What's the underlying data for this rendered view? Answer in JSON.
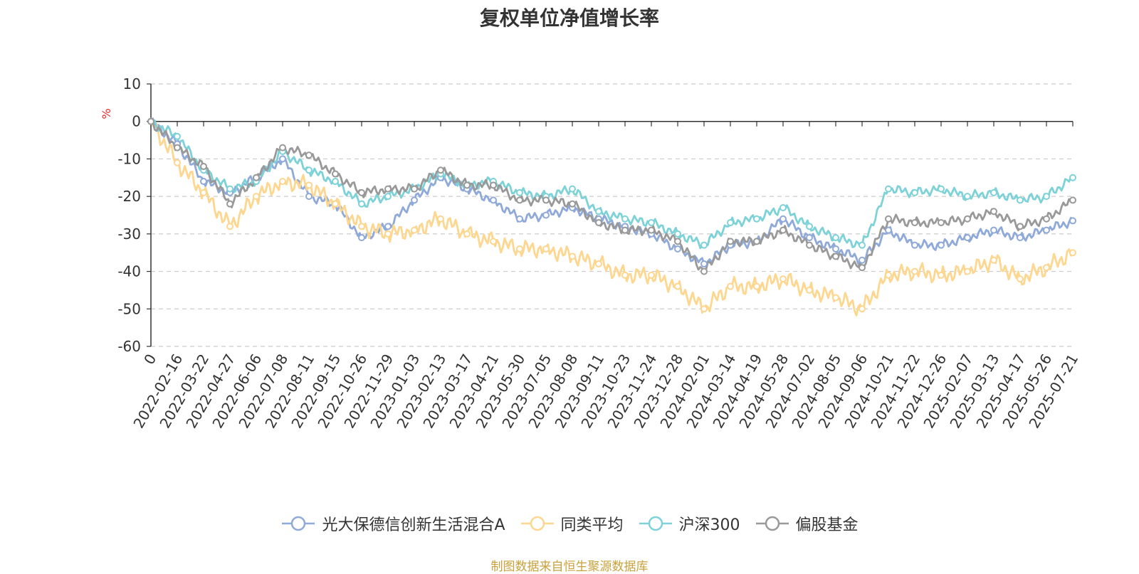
{
  "footer": "制图数据来自恒生聚源数据库",
  "chart_data": {
    "type": "line",
    "title": "复权单位净值增长率",
    "ylabel": "%",
    "ylim": [
      -60,
      10
    ],
    "yticks": [
      10,
      0,
      -10,
      -20,
      -30,
      -40,
      -50,
      -60
    ],
    "grid": true,
    "legend_position": "bottom",
    "x": [
      "0",
      "2022-02-16",
      "2022-03-22",
      "2022-04-27",
      "2022-06-06",
      "2022-07-08",
      "2022-08-11",
      "2022-09-15",
      "2022-10-26",
      "2022-11-29",
      "2023-01-03",
      "2023-02-13",
      "2023-03-17",
      "2023-04-21",
      "2023-05-30",
      "2023-07-05",
      "2023-08-08",
      "2023-09-11",
      "2023-10-23",
      "2023-11-24",
      "2023-12-28",
      "2024-02-01",
      "2024-03-14",
      "2024-04-19",
      "2024-05-28",
      "2024-07-02",
      "2024-08-05",
      "2024-09-06",
      "2024-10-21",
      "2024-11-22",
      "2024-12-26",
      "2025-02-07",
      "2025-03-13",
      "2025-04-17",
      "2025-05-26",
      "2025-07-21"
    ],
    "series": [
      {
        "name": "光大保德信创新生活混合A",
        "color": "#8fa9d8",
        "values": [
          0,
          -6,
          -16,
          -19,
          -15,
          -10,
          -20,
          -22,
          -31,
          -28,
          -21,
          -15,
          -18,
          -21,
          -26,
          -25,
          -23,
          -26,
          -28,
          -30,
          -34,
          -38,
          -33,
          -32,
          -26,
          -31,
          -34,
          -37,
          -29,
          -33,
          -33,
          -31,
          -29,
          -31,
          -29,
          -26.5
        ]
      },
      {
        "name": "同类平均",
        "color": "#fdd68f",
        "values": [
          0,
          -11,
          -19,
          -28,
          -20,
          -16,
          -17,
          -22,
          -28,
          -30,
          -29,
          -26,
          -30,
          -32,
          -34,
          -34,
          -36,
          -38,
          -41,
          -41,
          -44,
          -50,
          -44,
          -44,
          -42,
          -45,
          -47,
          -50,
          -41,
          -40,
          -41,
          -40,
          -37,
          -42,
          -39,
          -35
        ]
      },
      {
        "name": "沪深300",
        "color": "#7dd2d8",
        "values": [
          0,
          -4,
          -13,
          -18,
          -16,
          -8,
          -13,
          -16,
          -22,
          -20,
          -18,
          -14,
          -17,
          -16,
          -19,
          -20,
          -18,
          -24,
          -26,
          -27,
          -30,
          -33,
          -27,
          -26,
          -23,
          -28,
          -31,
          -33,
          -18,
          -19,
          -18,
          -20,
          -19,
          -21,
          -20,
          -15
        ]
      },
      {
        "name": "偏股基金",
        "color": "#999999",
        "values": [
          0,
          -7,
          -12,
          -22,
          -15,
          -7,
          -9,
          -14,
          -19,
          -18,
          -18,
          -13,
          -17,
          -17,
          -21,
          -21,
          -22,
          -27,
          -29,
          -29,
          -32,
          -40,
          -32,
          -32,
          -29,
          -33,
          -36,
          -39,
          -26,
          -27,
          -27,
          -26,
          -24,
          -28,
          -26,
          -21
        ]
      }
    ]
  }
}
